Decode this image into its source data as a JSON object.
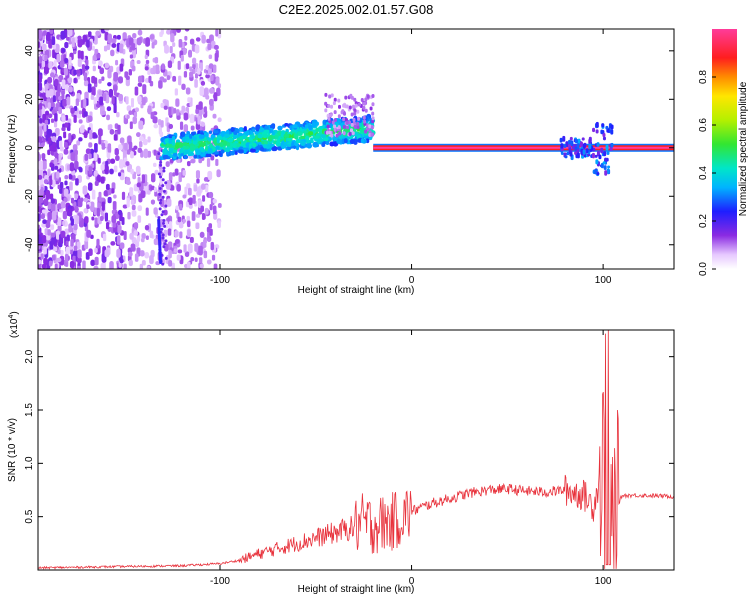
{
  "title": "C2E2.2025.002.01.57.G08",
  "chart_data": [
    {
      "type": "heatmap",
      "xlabel": "Height of straight line (km)",
      "ylabel": "Frequency (Hz)",
      "xlim": [
        -195,
        137
      ],
      "ylim": [
        -50,
        49
      ],
      "xticks": [
        "-100",
        "0",
        "100"
      ],
      "yticks": [
        "40",
        "20",
        "0",
        "-20",
        "-40"
      ],
      "colorbar": {
        "label": "Normalized spectral amplitude",
        "range": [
          0,
          1
        ],
        "ticks": [
          "0.0",
          "0.2",
          "0.4",
          "0.6",
          "0.8"
        ]
      },
      "features": [
        {
          "x_from": -195,
          "x_to": -110,
          "description_values": "scattered low-amplitude noise across full band"
        },
        {
          "x_from": -130,
          "x_to": -20,
          "freq_center_start": 0,
          "freq_center_end": 8
        },
        {
          "x_from": -20,
          "x_to": 137,
          "freq": 0,
          "amplitude": 1.0
        }
      ]
    },
    {
      "type": "line",
      "xlabel": "Height of straight line (km)",
      "ylabel": "SNR (10 * v/v)",
      "multiplier": "(x10",
      "multiplier_exp": "4",
      "multiplier_close": ")",
      "xlim": [
        -195,
        137
      ],
      "ylim": [
        0,
        2.25
      ],
      "xticks": [
        "-100",
        "0",
        "100"
      ],
      "yticks": [
        "0.5",
        "1.0",
        "1.5",
        "2.0"
      ],
      "series": [
        {
          "color": "#e8323c",
          "x": [
            -195,
            -160,
            -120,
            -100,
            -90,
            -80,
            -70,
            -60,
            -50,
            -40,
            -30,
            -25,
            -20,
            -10,
            -5,
            0,
            10,
            20,
            30,
            40,
            50,
            60,
            70,
            80,
            90,
            95,
            100,
            103,
            106,
            110,
            120,
            137
          ],
          "y": [
            0.02,
            0.03,
            0.04,
            0.06,
            0.09,
            0.15,
            0.2,
            0.25,
            0.3,
            0.35,
            0.4,
            0.45,
            0.42,
            0.45,
            0.5,
            0.55,
            0.62,
            0.67,
            0.72,
            0.75,
            0.76,
            0.74,
            0.73,
            0.75,
            0.7,
            0.6,
            1.0,
            0.3,
            0.55,
            0.7,
            0.7,
            0.69
          ]
        }
      ]
    }
  ]
}
